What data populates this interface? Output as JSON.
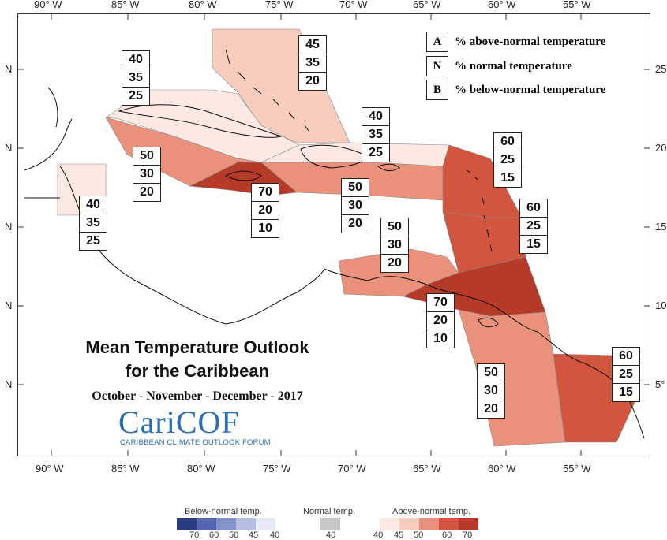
{
  "map": {
    "longitude_labels": [
      "90° W",
      "85° W",
      "80° W",
      "75° W",
      "70° W",
      "65° W",
      "60° W",
      "55° W"
    ],
    "latitude_labels_left": [
      "N",
      "N",
      "N",
      "N",
      "N"
    ],
    "latitude_labels_right": [
      "25",
      "20",
      "15",
      "10",
      "5°"
    ],
    "title_line1": "Mean Temperature Outlook",
    "title_line2": "for the Caribbean",
    "period": "October - November - December - 2017",
    "logo": "CariCOF",
    "logo_subtitle": "CARIBBEAN CLIMATE OUTLOOK FORUM"
  },
  "key": [
    {
      "code": "A",
      "label": "% above-normal temperature"
    },
    {
      "code": "N",
      "label": "% normal temperature"
    },
    {
      "code": "B",
      "label": "% below-normal temperature"
    }
  ],
  "zones": [
    {
      "id": "bahamas",
      "a": "45",
      "n": "35",
      "b": "20",
      "color": "#f8cdbd"
    },
    {
      "id": "cuba",
      "a": "40",
      "n": "35",
      "b": "25",
      "color": "#fde9e3"
    },
    {
      "id": "cayman",
      "a": "50",
      "n": "30",
      "b": "20",
      "color": "#e9917a"
    },
    {
      "id": "belize",
      "a": "40",
      "n": "35",
      "b": "25",
      "color": "#fde9e3"
    },
    {
      "id": "jamaica",
      "a": "70",
      "n": "20",
      "b": "10",
      "color": "#b53a27"
    },
    {
      "id": "hispaniola-north",
      "a": "40",
      "n": "35",
      "b": "25",
      "color": "#fde9e3"
    },
    {
      "id": "hispaniola-south",
      "a": "50",
      "n": "30",
      "b": "20",
      "color": "#e9917a"
    },
    {
      "id": "leeward",
      "a": "60",
      "n": "25",
      "b": "15",
      "color": "#d2553f"
    },
    {
      "id": "windward",
      "a": "60",
      "n": "25",
      "b": "15",
      "color": "#d2553f"
    },
    {
      "id": "abc",
      "a": "50",
      "n": "30",
      "b": "20",
      "color": "#e9917a"
    },
    {
      "id": "trinidad",
      "a": "70",
      "n": "20",
      "b": "10",
      "color": "#b53a27"
    },
    {
      "id": "guyana",
      "a": "50",
      "n": "30",
      "b": "20",
      "color": "#e9917a"
    },
    {
      "id": "suriname",
      "a": "60",
      "n": "25",
      "b": "15",
      "color": "#d2553f"
    }
  ],
  "colorbar": {
    "below_title": "Below-normal temp.",
    "normal_title": "Normal temp.",
    "above_title": "Above-normal temp.",
    "below_ticks": [
      "70",
      "60",
      "50",
      "45",
      "40"
    ],
    "normal_ticks": [
      "40"
    ],
    "above_ticks": [
      "40",
      "45",
      "50",
      "60",
      "70"
    ],
    "below_colors": [
      "#2b3c82",
      "#5466b3",
      "#8593cc",
      "#b5bde3",
      "#e6e9f6"
    ],
    "normal_color": "#c8c8c8",
    "above_colors": [
      "#fde9e3",
      "#f8cdbd",
      "#e9917a",
      "#d2553f",
      "#b53a27"
    ]
  }
}
